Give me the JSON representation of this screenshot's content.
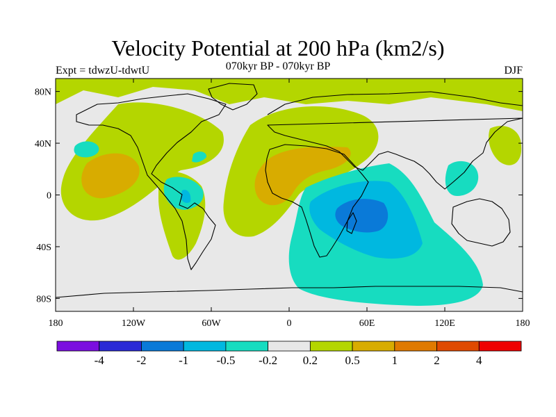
{
  "title": "Velocity Potential at 200 hPa (km2/s)",
  "subtitle": "070kyr BP - 070kyr BP",
  "experiment": "Expt = tdwzU-tdwtU",
  "season": "DJF",
  "lat_labels": [
    "80N",
    "40N",
    "0",
    "40S",
    "80S"
  ],
  "lon_labels": [
    "180",
    "120W",
    "60W",
    "0",
    "60E",
    "120E",
    "180"
  ],
  "colorbar": {
    "colors": [
      "#7b0fdf",
      "#2a2ad6",
      "#0a7ad8",
      "#00b8e0",
      "#17dcc0",
      "#e8e8e8",
      "#b4d600",
      "#d8ac00",
      "#e07a00",
      "#e04a00",
      "#ee0000"
    ],
    "labels": [
      "-4",
      "-2",
      "-1",
      "-0.5",
      "-0.2",
      "0.2",
      "0.5",
      "1",
      "2",
      "4"
    ]
  },
  "field_colors": {
    "background": "#e8e8e8",
    "pos_weak": "#b4d600",
    "pos_mid": "#d8ac00",
    "neg_weak": "#17dcc0",
    "neg_mid": "#00b8e0",
    "neg_strong": "#0a7ad8"
  }
}
